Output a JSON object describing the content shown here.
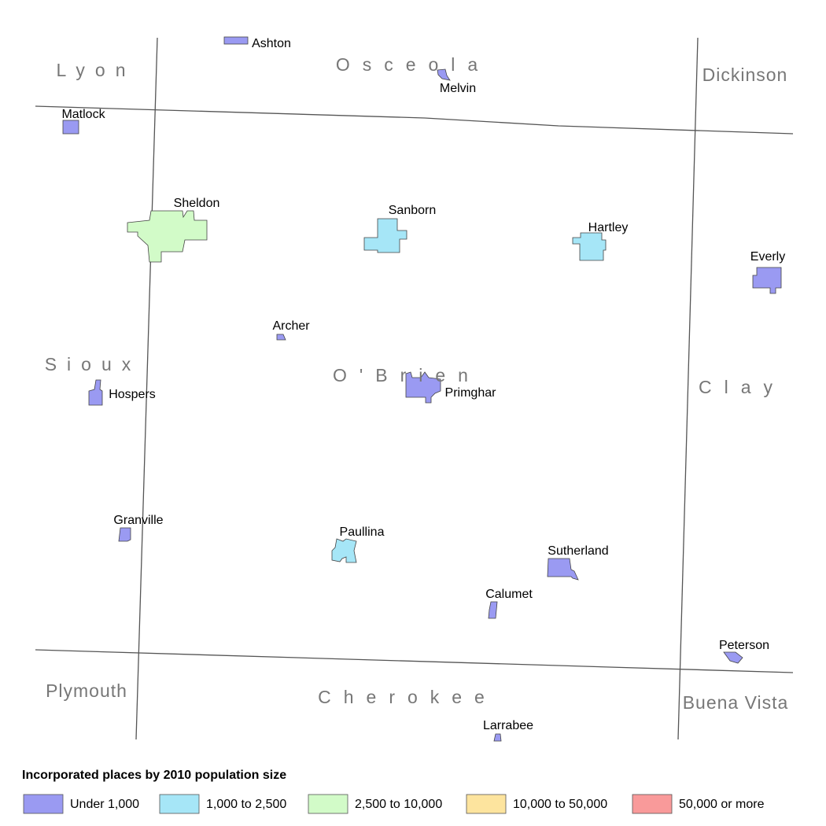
{
  "counties": [
    "Lyon",
    "Osceola",
    "Dickinson",
    "Sioux",
    "O'Brien",
    "Clay",
    "Plymouth",
    "Cherokee",
    "Buena Vista"
  ],
  "places": [
    "Ashton",
    "Melvin",
    "Matlock",
    "Sheldon",
    "Sanborn",
    "Hartley",
    "Everly",
    "Archer",
    "Hospers",
    "Primghar",
    "Granville",
    "Paullina",
    "Sutherland",
    "Calumet",
    "Peterson",
    "Larrabee"
  ],
  "legend": {
    "title": "Incorporated places by 2010 population size",
    "items": [
      {
        "label": "Under 1,000",
        "color": "#9a9af2"
      },
      {
        "label": "1,000 to 2,500",
        "color": "#a6e6f7"
      },
      {
        "label": "2,500 to 10,000",
        "color": "#d2fbc8"
      },
      {
        "label": "10,000 to 50,000",
        "color": "#fde49e"
      },
      {
        "label": "50,000 or more",
        "color": "#f99a9a"
      }
    ]
  }
}
